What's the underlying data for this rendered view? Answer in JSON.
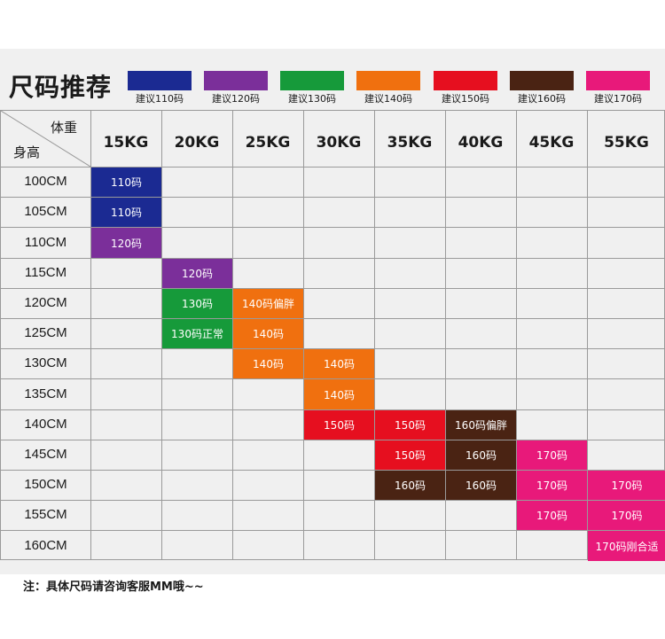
{
  "title": "尺码推荐",
  "legend": [
    {
      "label": "建议110码",
      "color": "#1b2a92"
    },
    {
      "label": "建议120码",
      "color": "#7b2f9a"
    },
    {
      "label": "建议130码",
      "color": "#169a3a"
    },
    {
      "label": "建议140码",
      "color": "#f0700f"
    },
    {
      "label": "建议150码",
      "color": "#e60f1f"
    },
    {
      "label": "建议160码",
      "color": "#4a2313"
    },
    {
      "label": "建议170码",
      "color": "#e8197a"
    }
  ],
  "table": {
    "corner_weight": "体重",
    "corner_height": "身高",
    "weights": [
      "15KG",
      "20KG",
      "25KG",
      "30KG",
      "35KG",
      "40KG",
      "45KG",
      "55KG"
    ],
    "heights": [
      "100CM",
      "105CM",
      "110CM",
      "115CM",
      "120CM",
      "125CM",
      "130CM",
      "135CM",
      "140CM",
      "145CM",
      "150CM",
      "155CM",
      "160CM"
    ],
    "cells": [
      {
        "row": 0,
        "col": 0,
        "text": "110码",
        "color": "#1b2a92"
      },
      {
        "row": 1,
        "col": 0,
        "text": "110码",
        "color": "#1b2a92"
      },
      {
        "row": 2,
        "col": 0,
        "text": "120码",
        "color": "#7b2f9a"
      },
      {
        "row": 3,
        "col": 1,
        "text": "120码",
        "color": "#7b2f9a"
      },
      {
        "row": 4,
        "col": 1,
        "text": "130码",
        "color": "#169a3a"
      },
      {
        "row": 4,
        "col": 2,
        "text": "140码偏胖",
        "color": "#f0700f"
      },
      {
        "row": 5,
        "col": 1,
        "text": "130码正常",
        "color": "#169a3a"
      },
      {
        "row": 5,
        "col": 2,
        "text": "140码",
        "color": "#f0700f"
      },
      {
        "row": 6,
        "col": 2,
        "text": "140码",
        "color": "#f0700f"
      },
      {
        "row": 6,
        "col": 3,
        "text": "140码",
        "color": "#f0700f"
      },
      {
        "row": 7,
        "col": 3,
        "text": "140码",
        "color": "#f0700f"
      },
      {
        "row": 8,
        "col": 3,
        "text": "150码",
        "color": "#e60f1f"
      },
      {
        "row": 8,
        "col": 4,
        "text": "150码",
        "color": "#e60f1f"
      },
      {
        "row": 8,
        "col": 5,
        "text": "160码偏胖",
        "color": "#4a2313"
      },
      {
        "row": 9,
        "col": 4,
        "text": "150码",
        "color": "#e60f1f"
      },
      {
        "row": 9,
        "col": 5,
        "text": "160码",
        "color": "#4a2313"
      },
      {
        "row": 9,
        "col": 6,
        "text": "170码",
        "color": "#e8197a"
      },
      {
        "row": 10,
        "col": 4,
        "text": "160码",
        "color": "#4a2313"
      },
      {
        "row": 10,
        "col": 5,
        "text": "160码",
        "color": "#4a2313"
      },
      {
        "row": 10,
        "col": 6,
        "text": "170码",
        "color": "#e8197a"
      },
      {
        "row": 10,
        "col": 7,
        "text": "170码",
        "color": "#e8197a"
      },
      {
        "row": 11,
        "col": 6,
        "text": "170码",
        "color": "#e8197a"
      },
      {
        "row": 11,
        "col": 7,
        "text": "170码",
        "color": "#e8197a"
      },
      {
        "row": 12,
        "col": 7,
        "text": "170码刚合适",
        "color": "#e8197a"
      }
    ]
  },
  "note": "注：具体尺码请咨询客服MM哦~~"
}
